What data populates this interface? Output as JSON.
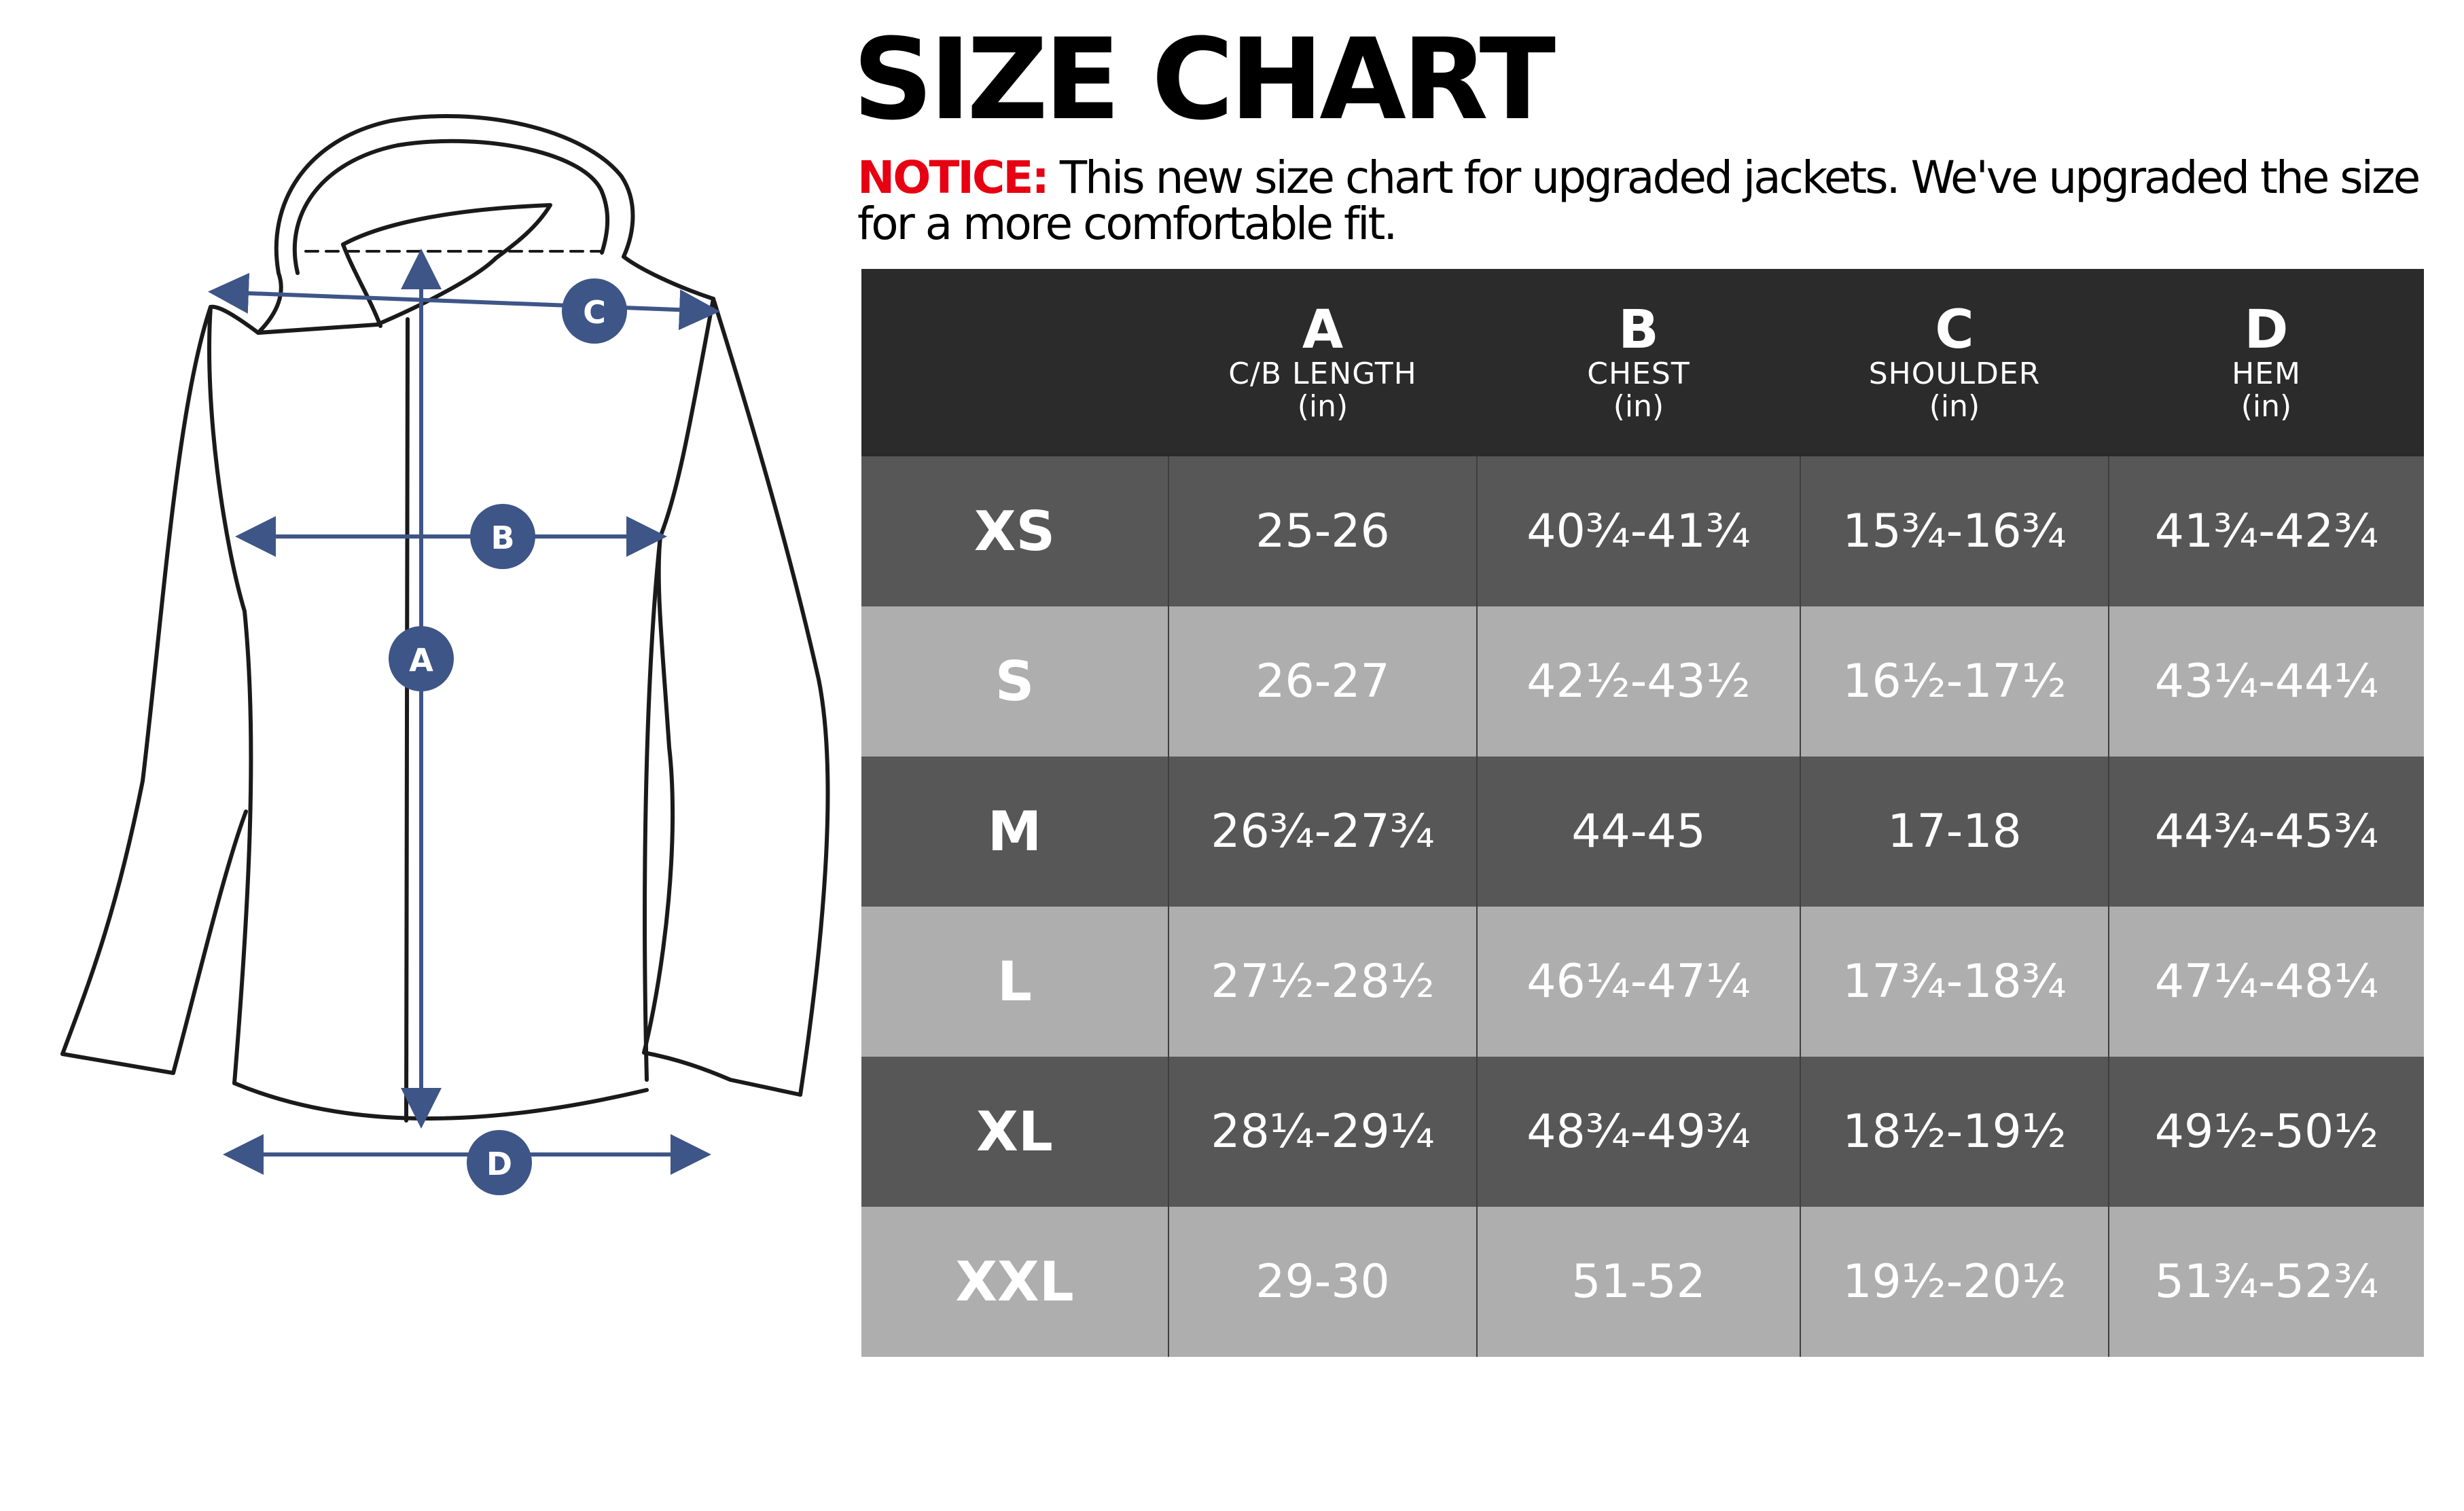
{
  "title": "SIZE CHART",
  "notice": {
    "label": "NOTICE:",
    "text": " This new size chart for upgraded jackets. We've upgraded the size for a more comfortable fit."
  },
  "diagram": {
    "markers": [
      "A",
      "B",
      "C",
      "D"
    ],
    "accent_color": "#3e5587"
  },
  "table": {
    "columns": [
      {
        "letter": "A",
        "name": "C/B LENGTH",
        "unit": "(in)"
      },
      {
        "letter": "B",
        "name": "CHEST",
        "unit": "(in)"
      },
      {
        "letter": "C",
        "name": "SHOULDER",
        "unit": "(in)"
      },
      {
        "letter": "D",
        "name": "HEM",
        "unit": "(in)"
      }
    ],
    "rows": [
      {
        "size": "XS",
        "values": [
          "25-26",
          "40¾-41¾",
          "15¾-16¾",
          "41¾-42¾"
        ]
      },
      {
        "size": "S",
        "values": [
          "26-27",
          "42½-43½",
          "16½-17½",
          "43¼-44¼"
        ]
      },
      {
        "size": "M",
        "values": [
          "26¾-27¾",
          "44-45",
          "17-18",
          "44¾-45¾"
        ]
      },
      {
        "size": "L",
        "values": [
          "27½-28½",
          "46¼-47¼",
          "17¾-18¾",
          "47¼-48¼"
        ]
      },
      {
        "size": "XL",
        "values": [
          "28¼-29¼",
          "48¾-49¾",
          "18½-19½",
          "49½-50½"
        ]
      },
      {
        "size": "XXL",
        "values": [
          "29-30",
          "51-52",
          "19½-20½",
          "51¾-52¾"
        ]
      }
    ]
  },
  "colors": {
    "header_bg": "#2b2b2b",
    "dark_row_bg": "#575757",
    "light_row_bg": "#aeaeae",
    "notice_red": "#e60012",
    "measure_blue": "#3e5587"
  }
}
